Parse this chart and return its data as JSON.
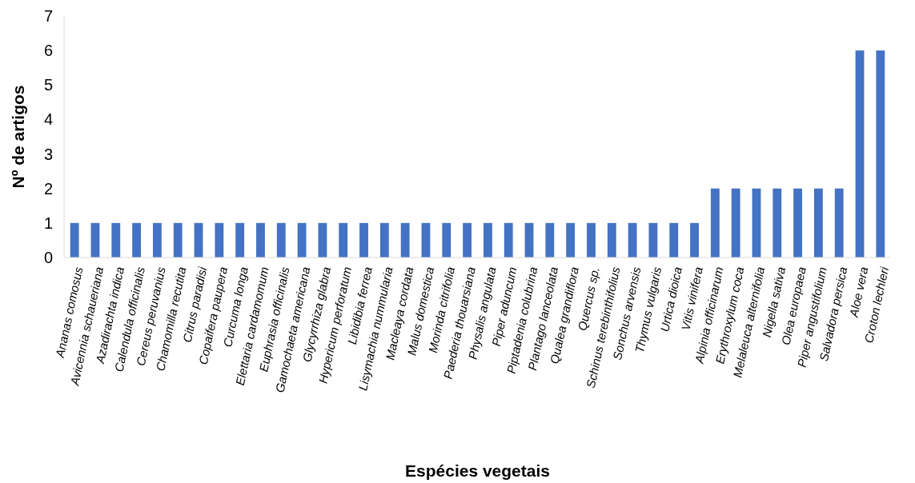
{
  "chart_data": {
    "type": "bar",
    "xlabel": "Espécies vegetais",
    "ylabel": "Nº de artigos",
    "categories": [
      "Ananas comosus",
      "Avicennia schaueriana",
      "Azadirachta indica",
      "Calendula officinalis",
      "Cereus peruvanius",
      "Chamomilla recutita",
      "Citrus paradisi",
      "Copaifera paupera",
      "Curcuma longa",
      "Elettaria cardamomum",
      "Euphrasia officinalis",
      "Gamochaeta americana",
      "Glycyrrhiza glabra",
      "Hypericum perforatum",
      "Libidibia ferrea",
      "Lisymachia nummularia",
      "Macleaya cordata",
      "Malus domestica",
      "Morinda citrifolia",
      "Paederia thouarsiana",
      "Physalis angulata",
      "Piper aduncum",
      "Piptadenia colubrina",
      "Plantago lanceolata",
      "Qualea grandiflora",
      "Quercus sp.",
      "Schinus terebinthifolius",
      "Sonchus arvensis",
      "Thymus vulgaris",
      "Urtica dioica",
      "Vitis vinifera",
      "Alpinia officinarum",
      "Erythroxylum coca",
      "Melaleuca alternifolia",
      "Nigella sativa",
      "Olea europaea",
      "Piper angustifolium",
      "Salvadora persica",
      "Aloe vera",
      "Croton lechleri"
    ],
    "values": [
      1,
      1,
      1,
      1,
      1,
      1,
      1,
      1,
      1,
      1,
      1,
      1,
      1,
      1,
      1,
      1,
      1,
      1,
      1,
      1,
      1,
      1,
      1,
      1,
      1,
      1,
      1,
      1,
      1,
      1,
      1,
      2,
      2,
      2,
      2,
      2,
      2,
      2,
      6,
      6
    ],
    "color": "#4472c4",
    "ylim": [
      0,
      7
    ],
    "yticks": [
      0,
      1,
      2,
      3,
      4,
      5,
      6,
      7
    ],
    "grid": false
  }
}
